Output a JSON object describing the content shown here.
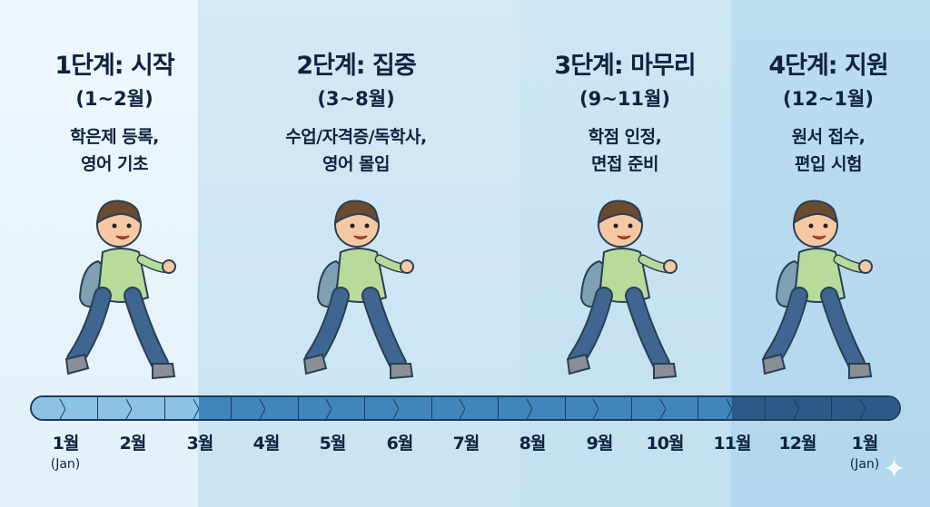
{
  "stages": [
    {
      "title": "1단계: 시작",
      "range": "(1~2월)",
      "desc_lines": [
        "학은제 등록,",
        "영어 기초"
      ]
    },
    {
      "title": "2단계: 집중",
      "range": "(3~8월)",
      "desc_lines": [
        "수업/자격증/독학사,",
        "영어 몰입"
      ]
    },
    {
      "title": "3단계: 마무리",
      "range": "(9~11월)",
      "desc_lines": [
        "학점 인정,",
        "면접 준비"
      ]
    },
    {
      "title": "4단계: 지원",
      "range": "(12~1월)",
      "desc_lines": [
        "원서 접수,",
        "편입 시험"
      ]
    }
  ],
  "timeline": {
    "months": [
      {
        "label": "1월",
        "sub": "(Jan)"
      },
      {
        "label": "2월"
      },
      {
        "label": "3월"
      },
      {
        "label": "4월"
      },
      {
        "label": "5월"
      },
      {
        "label": "6월"
      },
      {
        "label": "7월"
      },
      {
        "label": "8월"
      },
      {
        "label": "9월"
      },
      {
        "label": "10월"
      },
      {
        "label": "11월"
      },
      {
        "label": "12월"
      },
      {
        "label": "1월",
        "sub": "(Jan)"
      }
    ],
    "colors": {
      "stage1": "#8cc2e4",
      "stage2_3": "#3f86bd",
      "stage4": "#2b5a86"
    }
  },
  "icons": {
    "character": "walking-student-with-backpack",
    "sparkle": "sparkle-icon"
  }
}
